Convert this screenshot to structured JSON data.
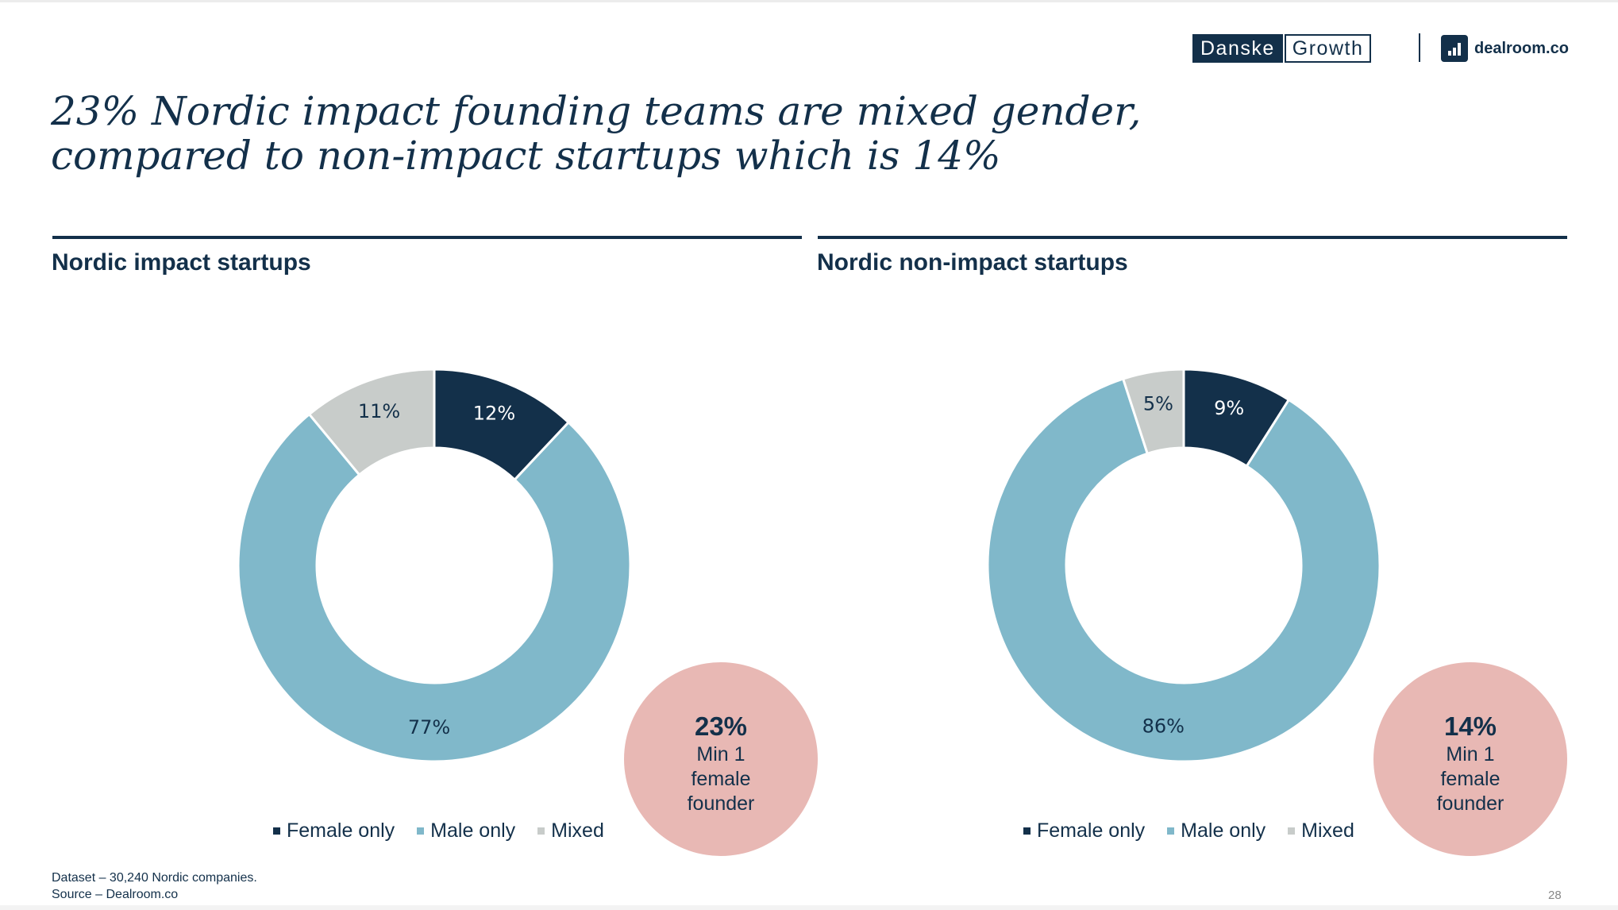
{
  "header": {
    "danske_left": "Danske",
    "danske_right": "Growth",
    "dealroom": "dealroom.co"
  },
  "title_lines": [
    "23% Nordic impact founding teams are mixed gender,",
    "compared to non-impact startups which is 14%"
  ],
  "colors": {
    "female_only": "#13304a",
    "male_only": "#80b8ca",
    "mixed": "#c8ccca",
    "callout": "#e8b8b4"
  },
  "chart_data": [
    {
      "type": "pie",
      "title": "Nordic impact startups",
      "categories": [
        "Female only",
        "Male only",
        "Mixed"
      ],
      "values": [
        12,
        77,
        11
      ],
      "labels": [
        "12%",
        "77%",
        "11%"
      ],
      "legend": "bottom",
      "callout": {
        "value": "23%",
        "label": "Min 1 female founder"
      }
    },
    {
      "type": "pie",
      "title": "Nordic non-impact startups",
      "categories": [
        "Female only",
        "Male only",
        "Mixed"
      ],
      "values": [
        9,
        86,
        5
      ],
      "labels": [
        "9%",
        "86%",
        "5%"
      ],
      "legend": "bottom",
      "callout": {
        "value": "14%",
        "label": "Min 1 female founder"
      }
    }
  ],
  "footnote": {
    "dataset": "Dataset – 30,240 Nordic companies.",
    "source": "Source – Dealroom.co"
  },
  "page_number": "28"
}
